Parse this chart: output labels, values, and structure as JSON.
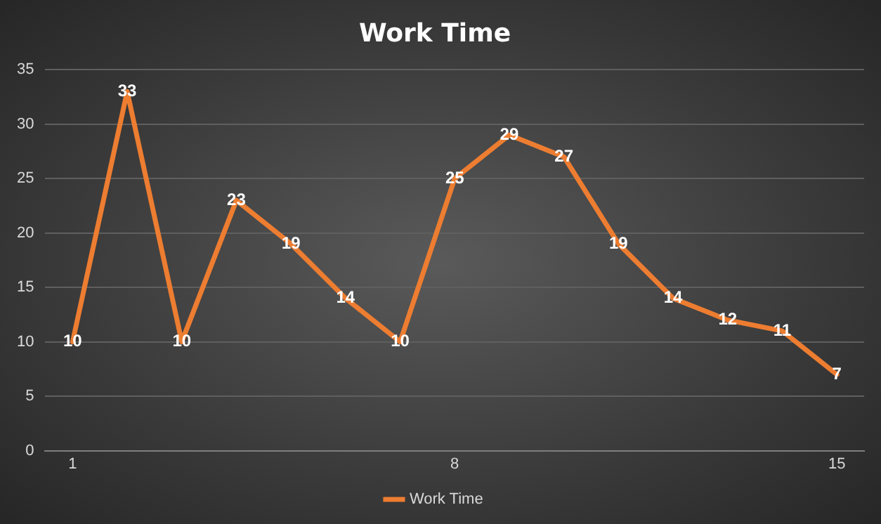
{
  "chart_data": {
    "type": "line",
    "title": "Work Time",
    "x": [
      1,
      2,
      3,
      4,
      5,
      6,
      7,
      8,
      9,
      10,
      11,
      12,
      13,
      14,
      15
    ],
    "series": [
      {
        "name": "Work Time",
        "color": "#ed7d31",
        "values": [
          10,
          33,
          10,
          23,
          19,
          14,
          10,
          25,
          29,
          27,
          19,
          14,
          12,
          11,
          7
        ]
      }
    ],
    "xlim": [
      0.5,
      15.5
    ],
    "xticks": [
      1,
      8,
      15
    ],
    "ylim": [
      0,
      35
    ],
    "yticks": [
      0,
      5,
      10,
      15,
      20,
      25,
      30,
      35
    ],
    "grid": "y",
    "legend": "bottom",
    "data_labels": true,
    "marker": "none",
    "line_style": "solid"
  }
}
